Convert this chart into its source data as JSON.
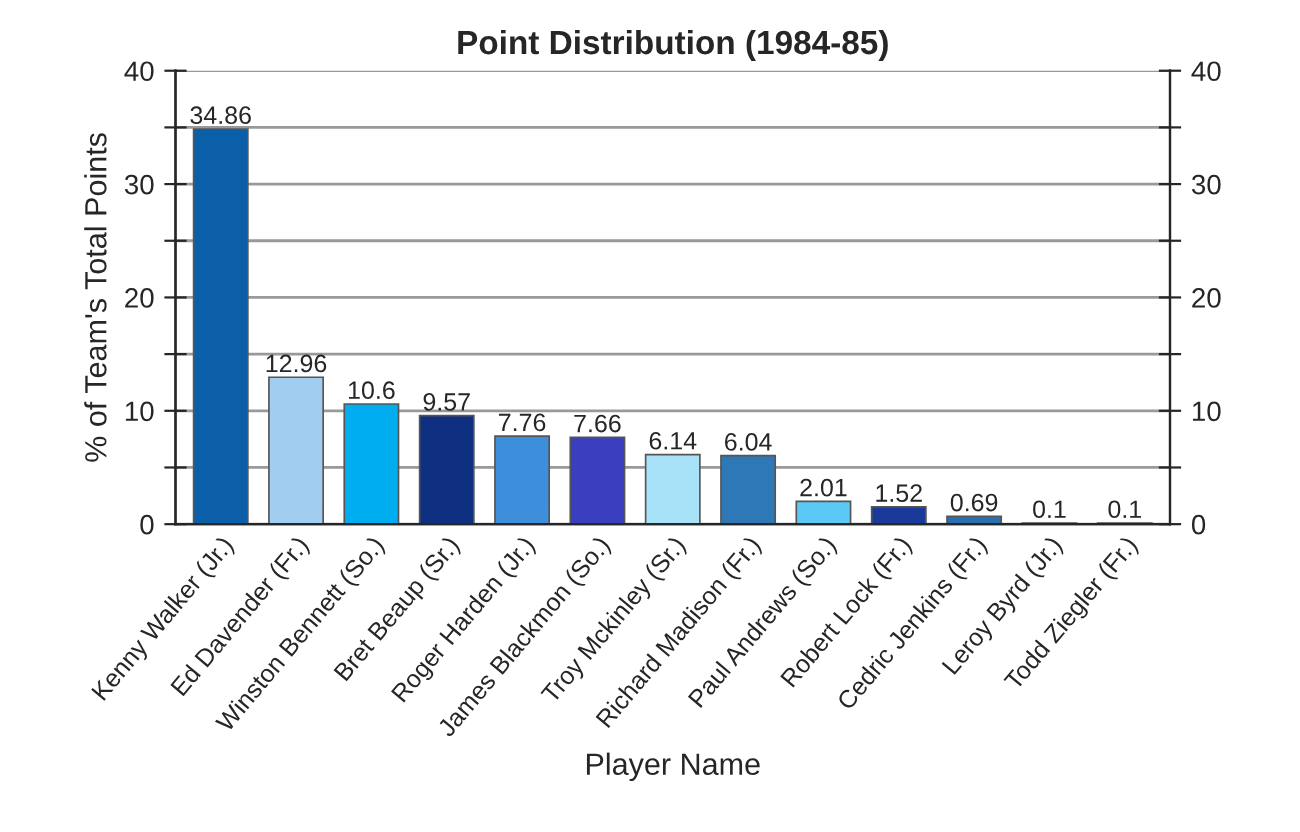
{
  "chart_data": {
    "type": "bar",
    "title": "Point Distribution (1984-85)",
    "xlabel": "Player Name",
    "ylabel": "% of Team's Total Points",
    "categories": [
      "Kenny Walker (Jr.)",
      "Ed Davender (Fr.)",
      "Winston Bennett (So.)",
      "Bret Beaup (Sr.)",
      "Roger Harden (Jr.)",
      "James Blackmon (So.)",
      "Troy Mckinley (Sr.)",
      "Richard Madison (Fr.)",
      "Paul Andrews (So.)",
      "Robert Lock (Fr.)",
      "Cedric Jenkins (Fr.)",
      "Leroy Byrd (Jr.)",
      "Todd Ziegler (Fr.)"
    ],
    "values": [
      34.86,
      12.96,
      10.6,
      9.57,
      7.76,
      7.66,
      6.14,
      6.04,
      2.01,
      1.52,
      0.69,
      0.1,
      0.1
    ],
    "colors": [
      "#0a5fa8",
      "#a0cdf0",
      "#00aeef",
      "#0f2f80",
      "#3d8fdc",
      "#3a3fbf",
      "#a8e2f8",
      "#2e78b8",
      "#5cc8f5",
      "#1a3a9a",
      "#2a70b0",
      "#3080c8",
      "#20a0e0"
    ],
    "data_labels": true,
    "ylim": [
      0,
      40
    ],
    "yticks": [
      0,
      {
        "value": 5,
        "label": null
      },
      10,
      {
        "value": 15,
        "label": null
      },
      20,
      {
        "value": 25,
        "label": null
      },
      30,
      {
        "value": 35,
        "label": null
      },
      40
    ],
    "y2lim": [
      0,
      40
    ],
    "y2ticks": [
      0,
      {
        "value": 5,
        "label": null
      },
      10,
      {
        "value": 15,
        "label": null
      },
      20,
      {
        "value": 25,
        "label": null
      },
      30,
      {
        "value": 35,
        "label": null
      },
      40
    ],
    "grid": "y"
  }
}
